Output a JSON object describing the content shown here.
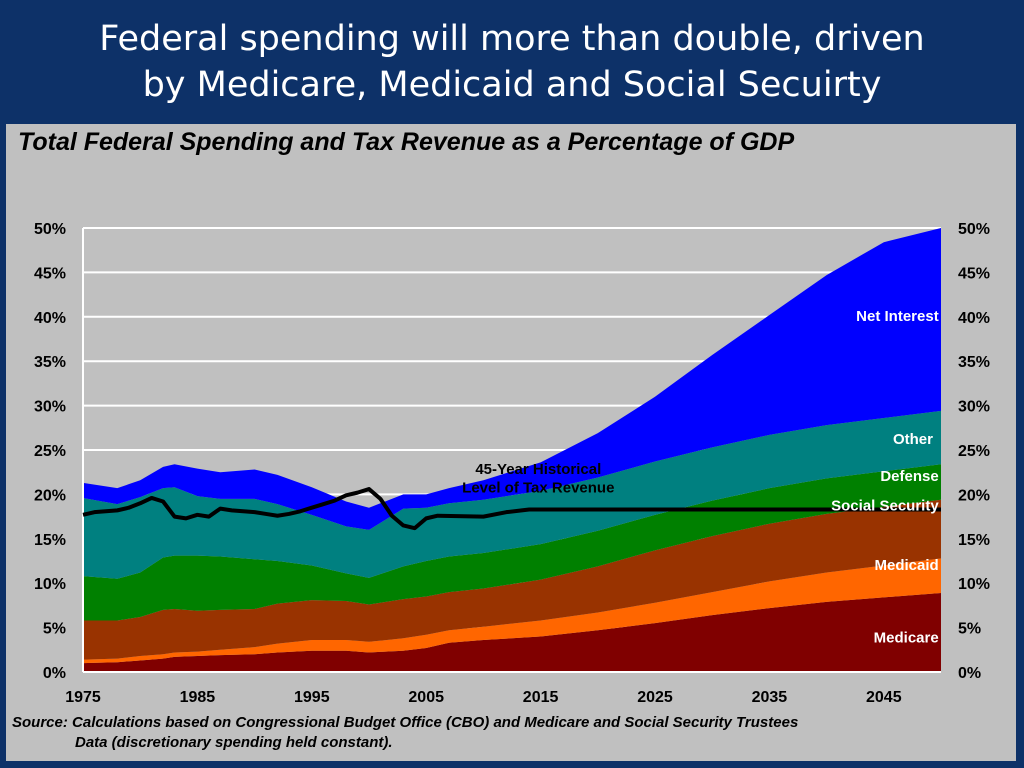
{
  "slide": {
    "title_line1": "Federal spending will more than double, driven",
    "title_line2": "by Medicare, Medicaid and Social Secuirty"
  },
  "chart_data": {
    "type": "area",
    "title": "Total Federal Spending and Tax Revenue as a Percentage of GDP",
    "xlabel": "",
    "ylabel": "",
    "xlim": [
      1975,
      2050
    ],
    "ylim": [
      0,
      50
    ],
    "x_ticks": [
      "1975",
      "1985",
      "1995",
      "2005",
      "2015",
      "2025",
      "2035",
      "2045"
    ],
    "y_ticks": [
      "0%",
      "5%",
      "10%",
      "15%",
      "20%",
      "25%",
      "30%",
      "35%",
      "40%",
      "45%",
      "50%"
    ],
    "grid": true,
    "stacked": true,
    "x": [
      1975,
      1978,
      1980,
      1982,
      1983,
      1985,
      1987,
      1990,
      1992,
      1995,
      1998,
      2000,
      2003,
      2005,
      2007,
      2010,
      2015,
      2020,
      2025,
      2030,
      2035,
      2040,
      2045,
      2050
    ],
    "series": [
      {
        "name": "Medicare",
        "color": "#800000",
        "values": [
          1.0,
          1.1,
          1.3,
          1.5,
          1.7,
          1.8,
          1.9,
          2.0,
          2.2,
          2.4,
          2.4,
          2.2,
          2.4,
          2.7,
          3.3,
          3.6,
          4.0,
          4.7,
          5.5,
          6.4,
          7.2,
          7.9,
          8.4,
          8.9
        ]
      },
      {
        "name": "Medicaid",
        "color": "#ff6600",
        "values": [
          0.4,
          0.4,
          0.5,
          0.5,
          0.5,
          0.5,
          0.6,
          0.8,
          1.0,
          1.2,
          1.2,
          1.2,
          1.4,
          1.5,
          1.4,
          1.5,
          1.8,
          2.0,
          2.3,
          2.6,
          3.0,
          3.3,
          3.6,
          3.9
        ]
      },
      {
        "name": "Social Security",
        "color": "#993300",
        "values": [
          4.4,
          4.3,
          4.4,
          5.0,
          4.9,
          4.6,
          4.5,
          4.3,
          4.5,
          4.5,
          4.4,
          4.2,
          4.4,
          4.3,
          4.3,
          4.3,
          4.6,
          5.2,
          5.9,
          6.3,
          6.5,
          6.6,
          6.6,
          6.6
        ]
      },
      {
        "name": "Defense",
        "color": "#008000",
        "values": [
          5.0,
          4.7,
          5.0,
          5.9,
          6.0,
          6.2,
          6.0,
          5.6,
          4.8,
          3.9,
          3.1,
          3.0,
          3.7,
          4.0,
          4.0,
          4.0,
          4.0,
          4.0,
          4.0,
          4.0,
          4.0,
          4.0,
          4.0,
          4.0
        ]
      },
      {
        "name": "Other",
        "color": "#008080",
        "values": [
          8.8,
          8.4,
          8.5,
          7.8,
          7.7,
          6.7,
          6.5,
          6.8,
          6.4,
          5.7,
          5.3,
          5.4,
          6.5,
          6.0,
          6.0,
          6.0,
          6.0,
          6.0,
          6.0,
          6.0,
          6.0,
          6.0,
          6.0,
          6.0
        ]
      },
      {
        "name": "Net Interest",
        "color": "#0000ff",
        "values": [
          1.7,
          1.8,
          1.9,
          2.4,
          2.6,
          3.1,
          3.0,
          3.3,
          3.3,
          3.1,
          2.8,
          2.5,
          1.6,
          1.5,
          1.7,
          2.2,
          3.2,
          5.0,
          7.3,
          10.4,
          13.5,
          16.9,
          19.8,
          20.6
        ]
      }
    ],
    "tax_revenue": {
      "x": [
        1975,
        1976,
        1978,
        1979,
        1980,
        1981,
        1982,
        1983,
        1984,
        1985,
        1986,
        1987,
        1988,
        1990,
        1991,
        1992,
        1993,
        1994,
        1995,
        1996,
        1997,
        1998,
        1999,
        2000,
        2001,
        2002,
        2003,
        2004,
        2005,
        2006,
        2010,
        2012,
        2014,
        2050
      ],
      "values": [
        17.7,
        18.0,
        18.2,
        18.5,
        19.0,
        19.6,
        19.2,
        17.5,
        17.3,
        17.7,
        17.5,
        18.4,
        18.2,
        18.0,
        17.8,
        17.6,
        17.8,
        18.1,
        18.5,
        18.9,
        19.3,
        19.9,
        20.2,
        20.6,
        19.5,
        17.6,
        16.5,
        16.2,
        17.3,
        17.6,
        17.5,
        18.0,
        18.3,
        18.3
      ],
      "color": "#000000",
      "label_line1": "45-Year Historical",
      "label_line2": "Level of Tax Revenue"
    },
    "area_labels": {
      "net_interest": "Net Interest",
      "other": "Other",
      "defense": "Defense",
      "social_security": "Social Security",
      "medicaid": "Medicaid",
      "medicare": "Medicare"
    }
  },
  "source": {
    "line1": "Source: Calculations based on Congressional Budget Office (CBO) and Medicare and Social Security Trustees",
    "line2": "Data (discretionary spending held constant)."
  }
}
